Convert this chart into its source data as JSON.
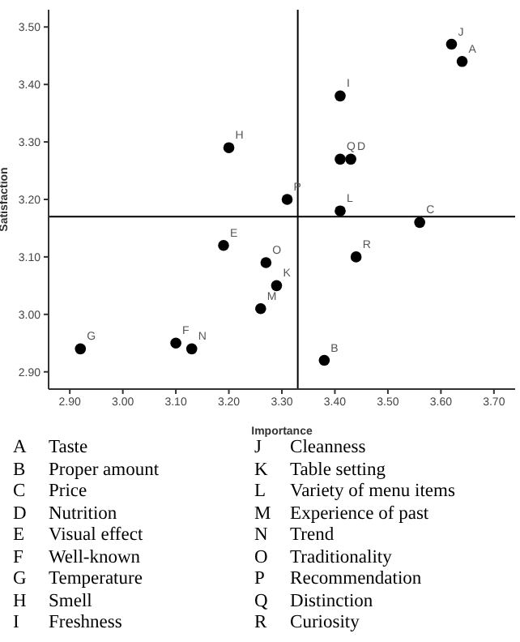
{
  "chart_data": {
    "type": "scatter",
    "xlabel": "Importance",
    "ylabel": "Satisfaction",
    "x": [
      3.64,
      3.38,
      3.56,
      3.43,
      3.19,
      3.1,
      2.92,
      3.2,
      3.41,
      3.62,
      3.29,
      3.41,
      3.26,
      3.13,
      3.27,
      3.31,
      3.41,
      3.44
    ],
    "series": [
      {
        "color": "#000000",
        "values": [
          3.44,
          2.92,
          3.16,
          3.27,
          3.12,
          2.95,
          2.94,
          3.29,
          3.38,
          3.47,
          3.05,
          3.18,
          3.01,
          2.94,
          3.09,
          3.2,
          3.27,
          3.1
        ],
        "value_labels": [
          "A",
          "B",
          "C",
          "D",
          "E",
          "F",
          "G",
          "H",
          "I",
          "J",
          "K",
          "L",
          "M",
          "N",
          "O",
          "P",
          "Q",
          "R"
        ]
      }
    ],
    "marker": "circle",
    "grid": false,
    "xlim": [
      2.86,
      3.74
    ],
    "xticks": [
      {
        "value": 2.9,
        "label": "2.90"
      },
      {
        "value": 3.0,
        "label": "3.00"
      },
      {
        "value": 3.1,
        "label": "3.10"
      },
      {
        "value": 3.2,
        "label": "3.20"
      },
      {
        "value": 3.3,
        "label": "3.30"
      },
      {
        "value": 3.4,
        "label": "3.40"
      },
      {
        "value": 3.5,
        "label": "3.50"
      },
      {
        "value": 3.6,
        "label": "3.60"
      },
      {
        "value": 3.7,
        "label": "3.70"
      }
    ],
    "ylim": [
      2.87,
      3.53
    ],
    "yticks": [
      {
        "value": 2.9,
        "label": "2.90"
      },
      {
        "value": 3.0,
        "label": "3.00"
      },
      {
        "value": 3.1,
        "label": "3.10"
      },
      {
        "value": 3.2,
        "label": "3.20"
      },
      {
        "value": 3.3,
        "label": "3.30"
      },
      {
        "value": 3.4,
        "label": "3.40"
      },
      {
        "value": 3.5,
        "label": "3.50"
      }
    ],
    "ref_lines": [
      {
        "axis": "x",
        "value": 3.33,
        "color": "#000000"
      },
      {
        "axis": "y",
        "value": 3.17,
        "color": "#000000"
      }
    ],
    "annotations": [
      "A Taste",
      "B Proper amount",
      "C Price",
      "D Nutrition",
      "E Visual effect",
      "F Well-known",
      "G Temperature",
      "H Smell",
      "I Freshness",
      "J Cleanness",
      "K Table setting",
      "L Variety of menu items",
      "M Experience of past",
      "N Trend",
      "O Traditionality",
      "P Recommendation",
      "Q Distinction",
      "R Curiosity"
    ]
  }
}
